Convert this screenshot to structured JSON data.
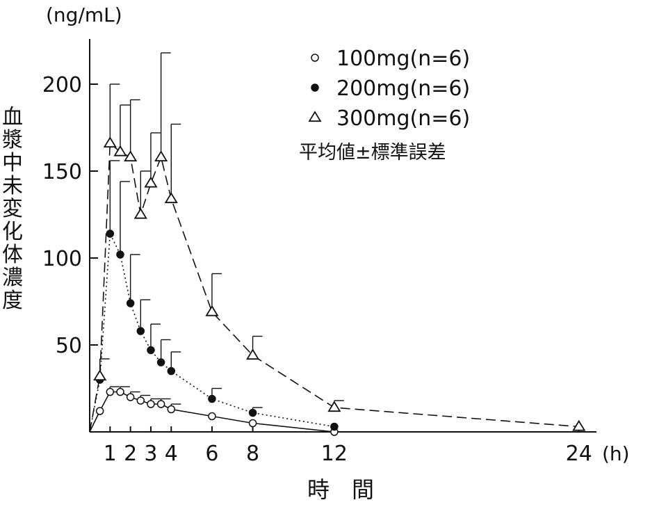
{
  "chart_data": {
    "type": "line",
    "unit_label": "(ng/mL)",
    "ylabel": "血漿中未変化体濃度",
    "xlabel": "時　間",
    "x_unit": "(h)",
    "xlim": [
      0,
      25
    ],
    "ylim": [
      0,
      225
    ],
    "x_ticks": [
      1,
      2,
      3,
      4,
      6,
      8,
      12,
      24
    ],
    "x_tick_labels": [
      "1",
      "2",
      "3",
      "4",
      "6",
      "8",
      "12",
      "24"
    ],
    "y_ticks": [
      50,
      100,
      150,
      200
    ],
    "y_tick_labels": [
      "50",
      "100",
      "150",
      "200"
    ],
    "grid": false,
    "legend_position": "top-right",
    "legend_note": "平均値±標準誤差",
    "series": [
      {
        "name": "100mg(n=6)",
        "marker": "open-circle",
        "line": "solid",
        "x": [
          0,
          0.5,
          1,
          1.5,
          2,
          2.5,
          3,
          3.5,
          4,
          6,
          8,
          12
        ],
        "y": [
          0,
          12,
          23,
          23,
          20,
          18,
          16,
          16,
          13,
          9,
          5,
          0
        ],
        "error": [
          0,
          0,
          3,
          3,
          3,
          3,
          3,
          3,
          3,
          0,
          0,
          0
        ]
      },
      {
        "name": "200mg(n=6)",
        "marker": "filled-circle",
        "line": "dotted",
        "x": [
          0,
          0.5,
          1,
          1.5,
          2,
          2.5,
          3,
          3.5,
          4,
          6,
          8,
          12
        ],
        "y": [
          0,
          30,
          114,
          102,
          74,
          58,
          47,
          40,
          35,
          19,
          11,
          3
        ],
        "error": [
          0,
          0,
          42,
          42,
          28,
          18,
          15,
          13,
          11,
          6,
          3,
          0
        ]
      },
      {
        "name": "300mg(n=6)",
        "marker": "open-triangle",
        "line": "dashed",
        "x": [
          0,
          0.5,
          1,
          1.5,
          2,
          2.5,
          3,
          3.5,
          4,
          6,
          8,
          12,
          24
        ],
        "y": [
          0,
          32,
          166,
          161,
          158,
          125,
          143,
          158,
          134,
          69,
          44,
          14,
          3
        ],
        "error": [
          0,
          10,
          34,
          27,
          33,
          25,
          29,
          60,
          43,
          22,
          11,
          4,
          0
        ]
      }
    ]
  }
}
